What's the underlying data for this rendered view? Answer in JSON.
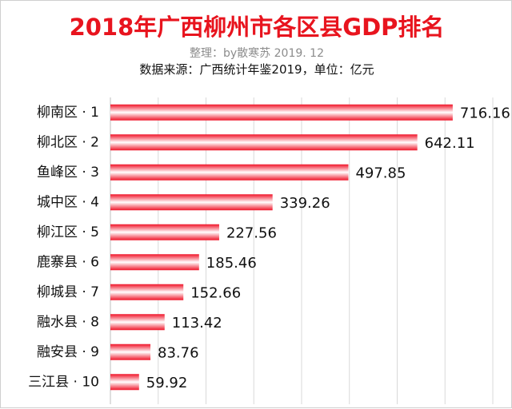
{
  "header": {
    "title": "2018年广西柳州市各区县GDP排名",
    "subtitle": "整理：by散寒苏  2019. 12",
    "source": "数据来源：广西统计年鉴2019，单位：亿元"
  },
  "colors": {
    "title": "#e8141e",
    "bar_edge": "#f01428",
    "bar_center": "#ffffff",
    "text": "#111111",
    "subtitle": "#8c8c8c"
  },
  "chart_data": {
    "type": "bar",
    "orientation": "horizontal",
    "title": "2018年广西柳州市各区县GDP排名",
    "subtitle": "整理：by散寒苏  2019. 12",
    "note": "数据来源：广西统计年鉴2019，单位：亿元",
    "xlabel": "",
    "ylabel": "",
    "categories": [
      "柳南区 · 1",
      "柳北区 · 2",
      "鱼峰区 · 3",
      "城中区 · 4",
      "柳江区 · 5",
      "鹿寨县 · 6",
      "柳城县 · 7",
      "融水县 · 8",
      "融安县 · 9",
      "三江县 · 10"
    ],
    "values": [
      716.16,
      642.11,
      497.85,
      339.26,
      227.56,
      185.46,
      152.66,
      113.42,
      83.76,
      59.92
    ],
    "value_labels": [
      "716.16",
      "642.11",
      "497.85",
      "339.26",
      "227.56",
      "185.46",
      "152.66",
      "113.42",
      "83.76",
      "59.92"
    ],
    "xlim": [
      0,
      800
    ],
    "grid": true,
    "legend": "none"
  }
}
